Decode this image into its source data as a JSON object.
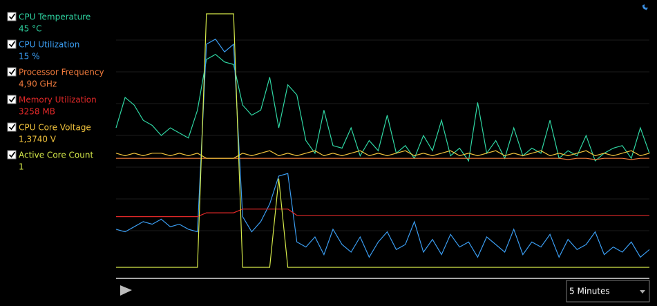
{
  "legend": {
    "readings": [
      "45 °C",
      "15 %",
      "4,90 GHz",
      "3258  MB",
      "1,3740 V",
      "1"
    ]
  },
  "controls": {
    "time_range": "5 Minutes"
  },
  "chart_data": {
    "type": "line",
    "ylim": [
      0,
      100
    ],
    "series": [
      {
        "name": "CPU Temperature",
        "color": "#2fd6a3",
        "values": [
          55,
          67,
          64,
          58,
          56,
          52,
          55,
          53,
          51,
          62,
          82,
          84,
          81,
          80,
          64,
          60,
          62,
          75,
          55,
          72,
          68,
          50,
          45,
          62,
          48,
          47,
          55,
          44,
          50,
          46,
          60,
          45,
          48,
          43,
          52,
          46,
          58,
          44,
          47,
          42,
          65,
          45,
          50,
          43,
          55,
          44,
          47,
          45,
          58,
          43,
          46,
          44,
          52,
          42,
          45,
          47,
          48,
          43,
          55,
          45
        ]
      },
      {
        "name": "CPU Utilization",
        "color": "#3a9cf0",
        "values": [
          15,
          14,
          16,
          18,
          17,
          19,
          16,
          17,
          15,
          14,
          88,
          90,
          85,
          88,
          20,
          14,
          18,
          25,
          36,
          37,
          10,
          8,
          12,
          5,
          15,
          9,
          6,
          12,
          4,
          10,
          14,
          7,
          9,
          18,
          6,
          11,
          5,
          13,
          8,
          10,
          4,
          12,
          9,
          6,
          15,
          5,
          10,
          8,
          13,
          4,
          11,
          7,
          9,
          14,
          5,
          8,
          6,
          10,
          4,
          7
        ]
      },
      {
        "name": "Processor Frequency",
        "color": "#f07a3c",
        "values": [
          43,
          43,
          43,
          43,
          43,
          43,
          43,
          43,
          43,
          43,
          43,
          43,
          43,
          43,
          43,
          43,
          43,
          43,
          43,
          43,
          43,
          43,
          43,
          43,
          43,
          43,
          43,
          43,
          43,
          43,
          43,
          43,
          43,
          43,
          43,
          43,
          43,
          43,
          43,
          43,
          43,
          43,
          43,
          43,
          43,
          43,
          43,
          43,
          43,
          43,
          42.5,
          43,
          43,
          42.5,
          43,
          43,
          43,
          42.5,
          43,
          43
        ]
      },
      {
        "name": "Memory Utilization",
        "color": "#e02828",
        "values": [
          20,
          20,
          20,
          20,
          20,
          20,
          20,
          20,
          20,
          20,
          21.5,
          21.5,
          21.5,
          21.5,
          23,
          23,
          23,
          23,
          23,
          23,
          20.5,
          20.5,
          20.5,
          20.5,
          20.5,
          20.5,
          20.5,
          20.5,
          20.5,
          20.5,
          20.5,
          20.5,
          20.5,
          20.5,
          20.5,
          20.5,
          20.5,
          20.5,
          20.5,
          20.5,
          20.5,
          20.5,
          20.5,
          20.5,
          20.5,
          20.5,
          20.5,
          20.5,
          20.5,
          20.5,
          20.5,
          20.5,
          20.5,
          20.5,
          20.5,
          20.5,
          20.5,
          20.5,
          20.5,
          20.5
        ]
      },
      {
        "name": "CPU Core Voltage",
        "color": "#f0c23c",
        "values": [
          45,
          44,
          45,
          44,
          45,
          45,
          44,
          45,
          44,
          45,
          43,
          43,
          43,
          43,
          45,
          44,
          45,
          46,
          44,
          45,
          44,
          45,
          46,
          44,
          45,
          44,
          45,
          46,
          44,
          45,
          44,
          45,
          46,
          44,
          45,
          44,
          45,
          46,
          44,
          45,
          44,
          45,
          46,
          44,
          45,
          44,
          45,
          46,
          44,
          45,
          44,
          45,
          46,
          44,
          45,
          44,
          45,
          46,
          44,
          45
        ]
      },
      {
        "name": "Active Core Count",
        "color": "#d6ea4a",
        "values": [
          0,
          0,
          0,
          0,
          0,
          0,
          0,
          0,
          0,
          0,
          100,
          100,
          100,
          100,
          0,
          0,
          0,
          0,
          35,
          0,
          0,
          0,
          0,
          0,
          0,
          0,
          0,
          0,
          0,
          0,
          0,
          0,
          0,
          0,
          0,
          0,
          0,
          0,
          0,
          0,
          0,
          0,
          0,
          0,
          0,
          0,
          0,
          0,
          0,
          0,
          0,
          0,
          0,
          0,
          0,
          0,
          0,
          0,
          0,
          0
        ]
      }
    ]
  }
}
